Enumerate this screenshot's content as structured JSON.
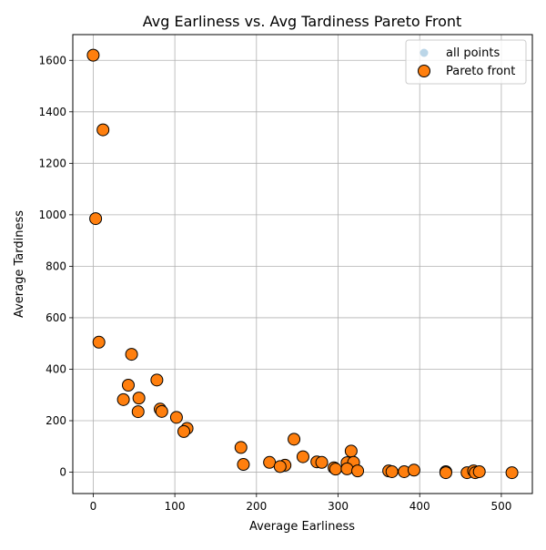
{
  "chart_data": {
    "type": "scatter",
    "title": "Avg Earliness vs. Avg Tardiness Pareto Front",
    "xlabel": "Average Earliness",
    "ylabel": "Average Tardiness",
    "xlim": [
      -25,
      538
    ],
    "ylim": [
      -83,
      1700
    ],
    "xticks": [
      0,
      100,
      200,
      300,
      400,
      500
    ],
    "yticks": [
      0,
      200,
      400,
      600,
      800,
      1000,
      1200,
      1400,
      1600
    ],
    "grid": true,
    "legend_position": "top-right",
    "series": [
      {
        "name": "all points",
        "color": "#1f77b4",
        "opacity": 0.3,
        "points": []
      },
      {
        "name": "Pareto front",
        "color": "#ff7f0e",
        "edgecolor": "#000000",
        "points": [
          [
            0,
            1620
          ],
          [
            12,
            1330
          ],
          [
            3,
            985
          ],
          [
            7,
            505
          ],
          [
            47,
            458
          ],
          [
            43,
            338
          ],
          [
            78,
            358
          ],
          [
            37,
            282
          ],
          [
            56,
            288
          ],
          [
            55,
            235
          ],
          [
            82,
            245
          ],
          [
            84,
            236
          ],
          [
            102,
            213
          ],
          [
            115,
            170
          ],
          [
            111,
            158
          ],
          [
            181,
            96
          ],
          [
            184,
            30
          ],
          [
            216,
            38
          ],
          [
            235,
            27
          ],
          [
            229,
            22
          ],
          [
            246,
            128
          ],
          [
            257,
            60
          ],
          [
            274,
            40
          ],
          [
            280,
            38
          ],
          [
            295,
            17
          ],
          [
            297,
            12
          ],
          [
            311,
            37
          ],
          [
            316,
            82
          ],
          [
            319,
            38
          ],
          [
            311,
            13
          ],
          [
            324,
            5
          ],
          [
            362,
            5
          ],
          [
            366,
            2
          ],
          [
            381,
            2
          ],
          [
            393,
            8
          ],
          [
            432,
            2
          ],
          [
            432,
            -2
          ],
          [
            458,
            -2
          ],
          [
            466,
            5
          ],
          [
            468,
            -2
          ],
          [
            473,
            2
          ],
          [
            513,
            -2
          ]
        ]
      }
    ]
  }
}
